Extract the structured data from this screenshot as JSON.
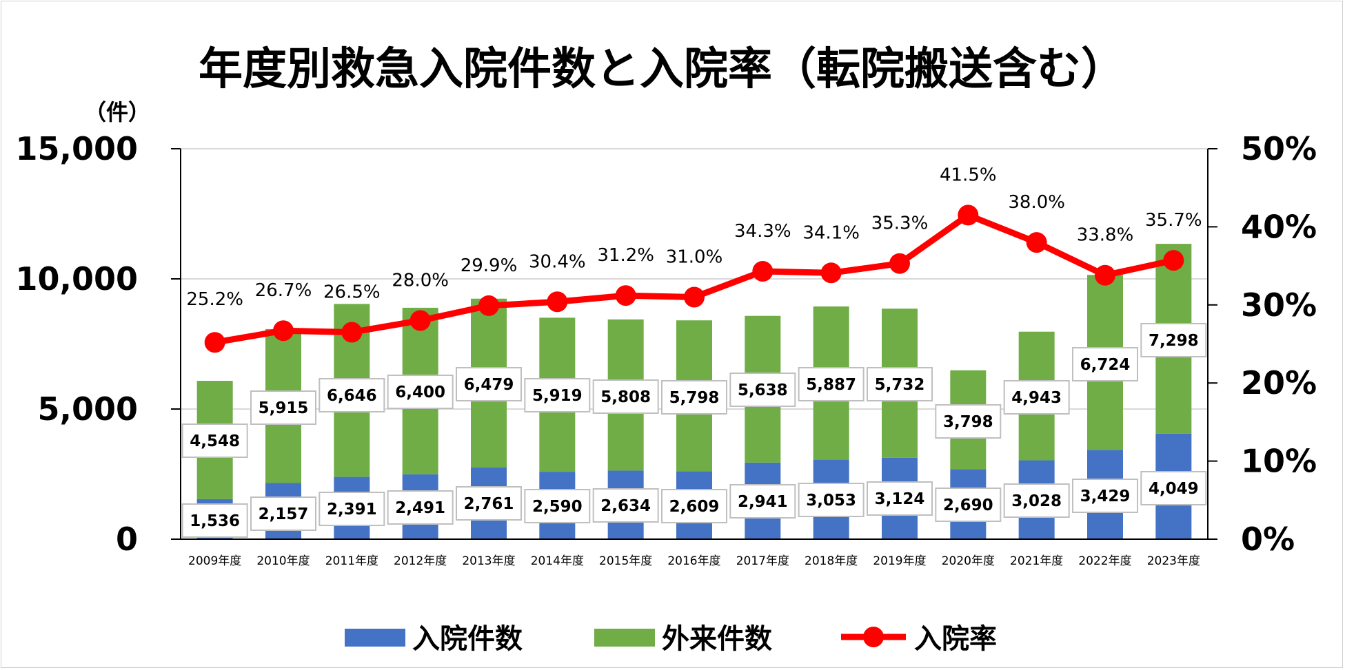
{
  "chart_data": {
    "type": "bar",
    "stacked": true,
    "title": "年度別救急入院件数と入院率（転院搬送含む）",
    "y_unit": "（件）",
    "categories": [
      "2009年度",
      "2010年度",
      "2011年度",
      "2012年度",
      "2013年度",
      "2014年度",
      "2015年度",
      "2016年度",
      "2017年度",
      "2018年度",
      "2019年度",
      "2020年度",
      "2021年度",
      "2022年度",
      "2023年度"
    ],
    "series": [
      {
        "name": "入院件数",
        "type": "bar",
        "axis": "left",
        "color": "#4472c4",
        "values": [
          1536,
          2157,
          2391,
          2491,
          2761,
          2590,
          2634,
          2609,
          2941,
          3053,
          3124,
          2690,
          3028,
          3429,
          4049
        ],
        "labels": [
          "1,536",
          "2,157",
          "2,391",
          "2,491",
          "2,761",
          "2,590",
          "2,634",
          "2,609",
          "2,941",
          "3,053",
          "3,124",
          "2,690",
          "3,028",
          "3,429",
          "4,049"
        ]
      },
      {
        "name": "外来件数",
        "type": "bar",
        "axis": "left",
        "color": "#70ad47",
        "values": [
          4548,
          5915,
          6646,
          6400,
          6479,
          5919,
          5808,
          5798,
          5638,
          5887,
          5732,
          3798,
          4943,
          6724,
          7298
        ],
        "labels": [
          "4,548",
          "5,915",
          "6,646",
          "6,400",
          "6,479",
          "5,919",
          "5,808",
          "5,798",
          "5,638",
          "5,887",
          "5,732",
          "3,798",
          "4,943",
          "6,724",
          "7,298"
        ]
      },
      {
        "name": "入院率",
        "type": "line",
        "axis": "right",
        "color": "#ff0000",
        "values": [
          25.2,
          26.7,
          26.5,
          28.0,
          29.9,
          30.4,
          31.2,
          31.0,
          34.3,
          34.1,
          35.3,
          41.5,
          38.0,
          33.8,
          35.7
        ],
        "labels": [
          "25.2%",
          "26.7%",
          "26.5%",
          "28.0%",
          "29.9%",
          "30.4%",
          "31.2%",
          "31.0%",
          "34.3%",
          "34.1%",
          "35.3%",
          "41.5%",
          "38.0%",
          "33.8%",
          "35.7%"
        ]
      }
    ],
    "y_left": {
      "min": 0,
      "max": 15000,
      "ticks": [
        0,
        5000,
        10000,
        15000
      ],
      "tick_labels": [
        "0",
        "5,000",
        "10,000",
        "15,000"
      ]
    },
    "y_right": {
      "min": 0,
      "max": 50,
      "ticks": [
        0,
        10,
        20,
        30,
        40,
        50
      ],
      "tick_labels": [
        "0%",
        "10%",
        "20%",
        "30%",
        "40%",
        "50%"
      ]
    },
    "grid": true,
    "legend_position": "bottom"
  }
}
